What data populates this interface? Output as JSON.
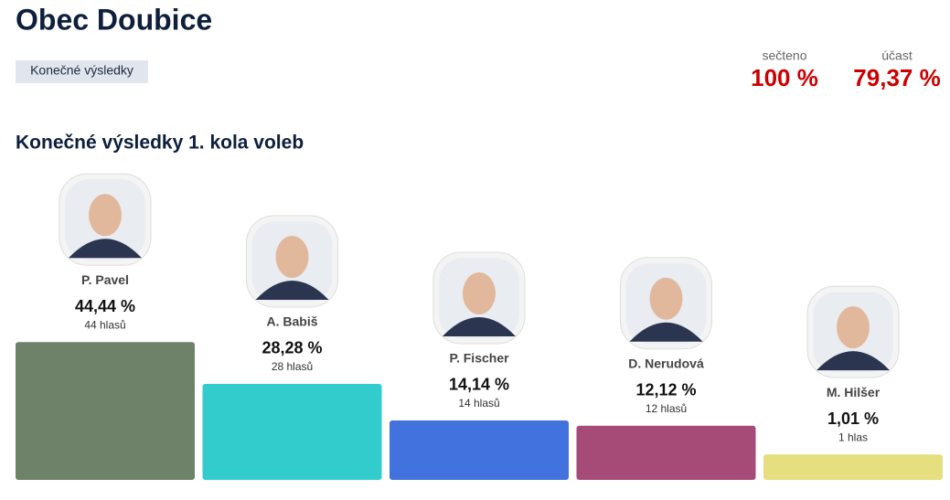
{
  "header": {
    "title": "Obec Doubice",
    "badge": "Konečné výsledky",
    "stats": [
      {
        "label": "sečteno",
        "value": "100 %"
      },
      {
        "label": "účast",
        "value": "79,37 %"
      }
    ]
  },
  "chart_data": {
    "type": "bar",
    "title": "Konečné výsledky 1. kola voleb",
    "categories": [
      "P. Pavel",
      "A. Babiš",
      "P. Fischer",
      "D. Nerudová",
      "M. Hilšer"
    ],
    "values": [
      44.44,
      28.28,
      14.14,
      12.12,
      1.01
    ],
    "value_labels": [
      "44,44 %",
      "28,28 %",
      "14,14 %",
      "12,12 %",
      "1,01 %"
    ],
    "vote_labels": [
      "44 hlasů",
      "28 hlasů",
      "14 hlasů",
      "12 hlasů",
      "1 hlas"
    ],
    "colors": [
      "#6e8269",
      "#33cccc",
      "#4272dd",
      "#a64b78",
      "#e5df7f"
    ]
  }
}
